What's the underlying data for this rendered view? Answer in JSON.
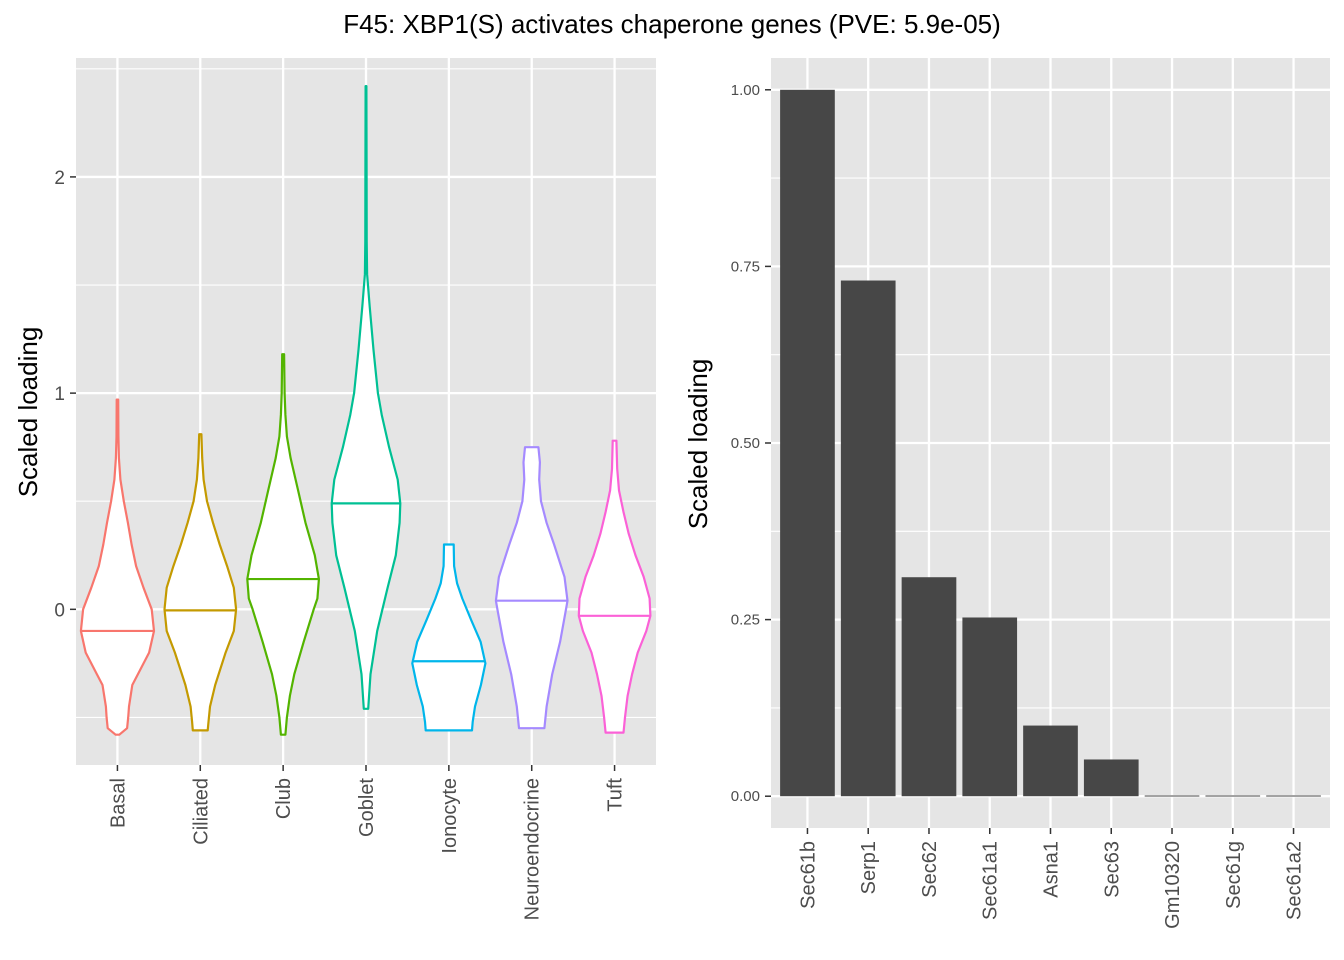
{
  "title": "F45: XBP1(S) activates chaperone genes (PVE: 5.9e-05)",
  "colors": {
    "panel_bg": "#e5e5e5",
    "grid": "#ffffff",
    "bar_fill": "#474747",
    "axis_text": "#4d4d4d"
  },
  "chart_data": [
    {
      "type": "violin",
      "ylabel": "Scaled loading",
      "xlabel": "",
      "ylim": [
        -0.72,
        2.55
      ],
      "yticks": [
        0,
        1,
        2
      ],
      "ytick_labels": [
        "0",
        "1",
        "2"
      ],
      "grid": true,
      "categories": [
        "Basal",
        "Ciliated",
        "Club",
        "Goblet",
        "Ionocyte",
        "Neuroendocrine",
        "Tuft"
      ],
      "series": [
        {
          "category": "Basal",
          "color": "#F8766D",
          "median": -0.1,
          "max": 0.97,
          "min": -0.58,
          "profile": [
            [
              -0.58,
              0.05
            ],
            [
              -0.55,
              0.26
            ],
            [
              -0.5,
              0.29
            ],
            [
              -0.45,
              0.31
            ],
            [
              -0.35,
              0.4
            ],
            [
              -0.3,
              0.55
            ],
            [
              -0.2,
              0.85
            ],
            [
              -0.1,
              0.98
            ],
            [
              0.0,
              0.92
            ],
            [
              0.1,
              0.7
            ],
            [
              0.2,
              0.5
            ],
            [
              0.3,
              0.38
            ],
            [
              0.4,
              0.28
            ],
            [
              0.5,
              0.17
            ],
            [
              0.6,
              0.08
            ],
            [
              0.7,
              0.04
            ],
            [
              0.8,
              0.025
            ],
            [
              0.97,
              0.02
            ]
          ]
        },
        {
          "category": "Ciliated",
          "color": "#C49A00",
          "median": -0.005,
          "max": 0.81,
          "min": -0.56,
          "profile": [
            [
              -0.56,
              0.2
            ],
            [
              -0.52,
              0.22
            ],
            [
              -0.45,
              0.26
            ],
            [
              -0.35,
              0.4
            ],
            [
              -0.2,
              0.68
            ],
            [
              -0.1,
              0.9
            ],
            [
              0.0,
              0.96
            ],
            [
              0.1,
              0.9
            ],
            [
              0.2,
              0.72
            ],
            [
              0.3,
              0.52
            ],
            [
              0.4,
              0.34
            ],
            [
              0.5,
              0.18
            ],
            [
              0.6,
              0.09
            ],
            [
              0.7,
              0.05
            ],
            [
              0.81,
              0.03
            ]
          ]
        },
        {
          "category": "Club",
          "color": "#53B400",
          "median": 0.14,
          "max": 1.18,
          "min": -0.58,
          "profile": [
            [
              -0.58,
              0.06
            ],
            [
              -0.5,
              0.1
            ],
            [
              -0.4,
              0.18
            ],
            [
              -0.3,
              0.3
            ],
            [
              -0.15,
              0.55
            ],
            [
              0.0,
              0.82
            ],
            [
              0.05,
              0.92
            ],
            [
              0.14,
              0.96
            ],
            [
              0.25,
              0.85
            ],
            [
              0.4,
              0.6
            ],
            [
              0.55,
              0.4
            ],
            [
              0.7,
              0.2
            ],
            [
              0.8,
              0.1
            ],
            [
              0.9,
              0.06
            ],
            [
              1.0,
              0.04
            ],
            [
              1.18,
              0.025
            ]
          ]
        },
        {
          "category": "Goblet",
          "color": "#00C094",
          "median": 0.49,
          "max": 2.42,
          "min": -0.46,
          "profile": [
            [
              -0.46,
              0.06
            ],
            [
              -0.3,
              0.12
            ],
            [
              -0.1,
              0.3
            ],
            [
              0.1,
              0.58
            ],
            [
              0.25,
              0.8
            ],
            [
              0.4,
              0.9
            ],
            [
              0.49,
              0.92
            ],
            [
              0.6,
              0.85
            ],
            [
              0.75,
              0.62
            ],
            [
              0.9,
              0.42
            ],
            [
              1.0,
              0.32
            ],
            [
              1.2,
              0.2
            ],
            [
              1.4,
              0.1
            ],
            [
              1.55,
              0.03
            ],
            [
              1.7,
              0.02
            ],
            [
              2.0,
              0.015
            ],
            [
              2.42,
              0.01
            ]
          ]
        },
        {
          "category": "Ionocyte",
          "color": "#00B6EB",
          "median": -0.24,
          "max": 0.3,
          "min": -0.56,
          "profile": [
            [
              -0.56,
              0.62
            ],
            [
              -0.52,
              0.64
            ],
            [
              -0.45,
              0.7
            ],
            [
              -0.35,
              0.86
            ],
            [
              -0.25,
              0.98
            ],
            [
              -0.15,
              0.85
            ],
            [
              -0.05,
              0.6
            ],
            [
              0.05,
              0.36
            ],
            [
              0.12,
              0.22
            ],
            [
              0.2,
              0.14
            ],
            [
              0.3,
              0.13
            ]
          ]
        },
        {
          "category": "Neuroendocrine",
          "color": "#A58AFF",
          "median": 0.04,
          "max": 0.75,
          "min": -0.55,
          "profile": [
            [
              -0.55,
              0.34
            ],
            [
              -0.45,
              0.4
            ],
            [
              -0.3,
              0.55
            ],
            [
              -0.15,
              0.76
            ],
            [
              0.0,
              0.92
            ],
            [
              0.04,
              0.96
            ],
            [
              0.15,
              0.88
            ],
            [
              0.3,
              0.6
            ],
            [
              0.4,
              0.4
            ],
            [
              0.5,
              0.25
            ],
            [
              0.6,
              0.2
            ],
            [
              0.68,
              0.22
            ],
            [
              0.75,
              0.18
            ]
          ]
        },
        {
          "category": "Tuft",
          "color": "#FB61D7",
          "median": -0.03,
          "max": 0.78,
          "min": -0.57,
          "profile": [
            [
              -0.57,
              0.24
            ],
            [
              -0.5,
              0.28
            ],
            [
              -0.4,
              0.35
            ],
            [
              -0.3,
              0.47
            ],
            [
              -0.2,
              0.62
            ],
            [
              -0.1,
              0.85
            ],
            [
              -0.03,
              0.96
            ],
            [
              0.05,
              0.94
            ],
            [
              0.15,
              0.78
            ],
            [
              0.25,
              0.56
            ],
            [
              0.35,
              0.38
            ],
            [
              0.45,
              0.24
            ],
            [
              0.55,
              0.12
            ],
            [
              0.65,
              0.07
            ],
            [
              0.78,
              0.05
            ]
          ]
        }
      ]
    },
    {
      "type": "bar",
      "ylabel": "Scaled loading",
      "xlabel": "",
      "ylim": [
        -0.045,
        1.045
      ],
      "yticks": [
        0,
        0.25,
        0.5,
        0.75,
        1.0
      ],
      "ytick_labels": [
        "0.00",
        "0.25",
        "0.50",
        "0.75",
        "1.00"
      ],
      "grid": true,
      "categories": [
        "Sec61b",
        "Serp1",
        "Sec62",
        "Sec61a1",
        "Asna1",
        "Sec63",
        "Gm10320",
        "Sec61g",
        "Sec61a2"
      ],
      "values": [
        1.0,
        0.73,
        0.31,
        0.253,
        0.1,
        0.052,
        0.001,
        0.001,
        0.001
      ]
    }
  ]
}
